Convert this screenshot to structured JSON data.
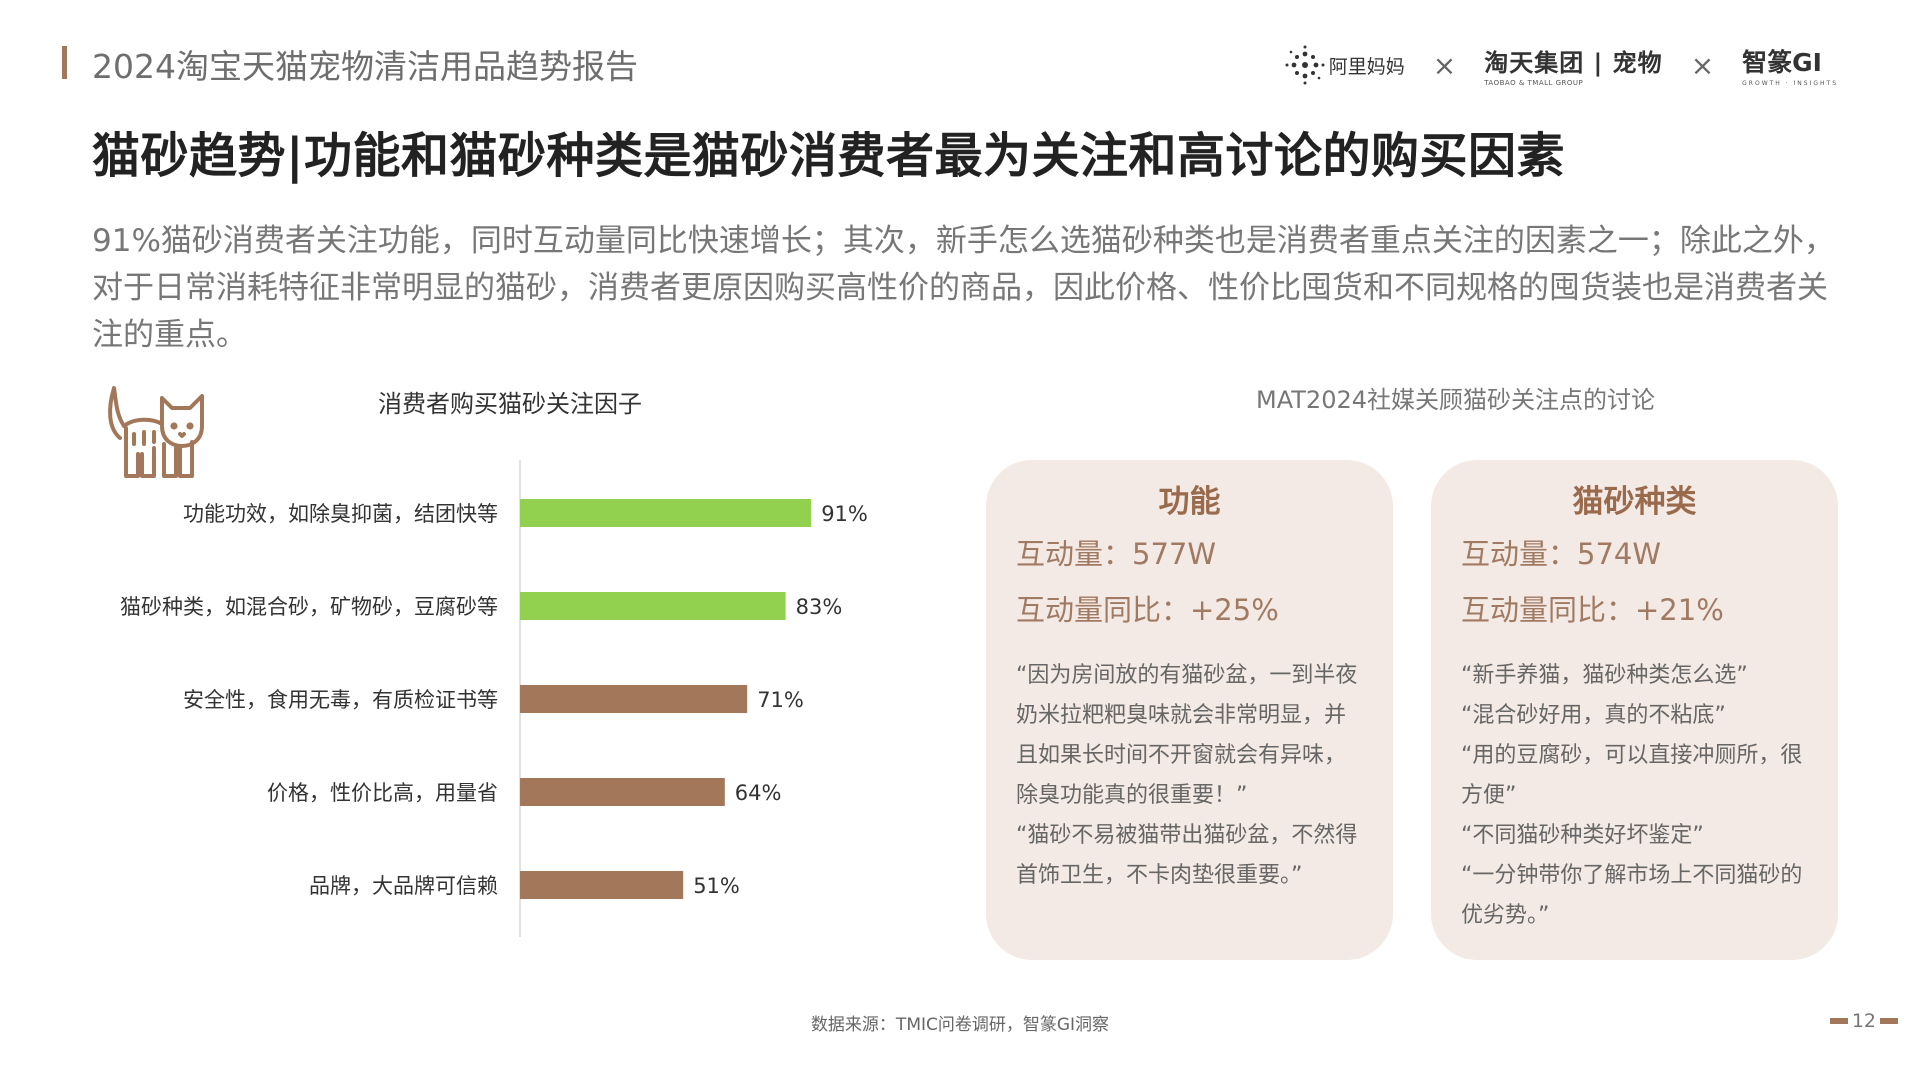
{
  "header": {
    "report_title": "2024淘宝天猫宠物清洁用品趋势报告",
    "logos": {
      "alimama": "阿里妈妈",
      "tmall_main": "淘天集团 | 宠物",
      "tmall_sub": "TAOBAO & TMALL GROUP",
      "gi_main": "智篆GI",
      "gi_sub": "GROWTH · INSIGHTS",
      "separator": "×"
    }
  },
  "main_title": "猫砂趋势|功能和猫砂种类是猫砂消费者最为关注和高讨论的购买因素",
  "description": "91%猫砂消费者关注功能，同时互动量同比快速增长；其次，新手怎么选猫砂种类也是消费者重点关注的因素之一；除此之外，对于日常消耗特征非常明显的猫砂，消费者更原因购买高性价的商品，因此价格、性价比囤货和不同规格的囤货装也是消费者关注的重点。",
  "left_panel": {
    "icon": "cat-icon"
  },
  "chart_data": {
    "type": "bar",
    "orientation": "horizontal",
    "title": "消费者购买猫砂关注因子",
    "categories": [
      "功能功效，如除臭抑菌，结团快等",
      "猫砂种类，如混合砂，矿物砂，豆腐砂等",
      "安全性，食用无毒，有质检证书等",
      "价格，性价比高，用量省",
      "品牌，大品牌可信赖"
    ],
    "values": [
      91,
      83,
      71,
      64,
      51
    ],
    "value_labels": [
      "91%",
      "83%",
      "71%",
      "64%",
      "51%"
    ],
    "unit": "%",
    "xlim": [
      0,
      100
    ],
    "bar_colors": [
      "#92d050",
      "#92d050",
      "#a3785a",
      "#a3785a",
      "#a3785a"
    ],
    "grid": false,
    "legend": "none"
  },
  "right_panel": {
    "title": "MAT2024社媒关顾猫砂关注点的讨论",
    "cards": [
      {
        "title": "功能",
        "metric_1": "互动量：577W",
        "metric_2": "互动量同比：+25%",
        "quotes": [
          "“因为房间放的有猫砂盆，一到半夜奶米拉粑粑臭味就会非常明显，并且如果长时间不开窗就会有异味，除臭功能真的很重要！”",
          "“猫砂不易被猫带出猫砂盆，不然得首饰卫生，不卡肉垫很重要。”"
        ]
      },
      {
        "title": "猫砂种类",
        "metric_1": "互动量：574W",
        "metric_2": "互动量同比：+21%",
        "quotes": [
          "“新手养猫，猫砂种类怎么选”",
          "“混合砂好用，真的不粘底”",
          "“用的豆腐砂，可以直接冲厕所，很方便”",
          "“不同猫砂种类好坏鉴定”",
          "“一分钟带你了解市场上不同猫砂的优劣势。”"
        ]
      }
    ]
  },
  "footer": {
    "source": "数据来源：TMIC问卷调研，智篆GI洞察",
    "page_number": "12"
  },
  "colors": {
    "accent_brown": "#a3785a",
    "accent_green": "#92d050",
    "card_bg": "#f3eae5",
    "card_title": "#9a6a4d"
  }
}
